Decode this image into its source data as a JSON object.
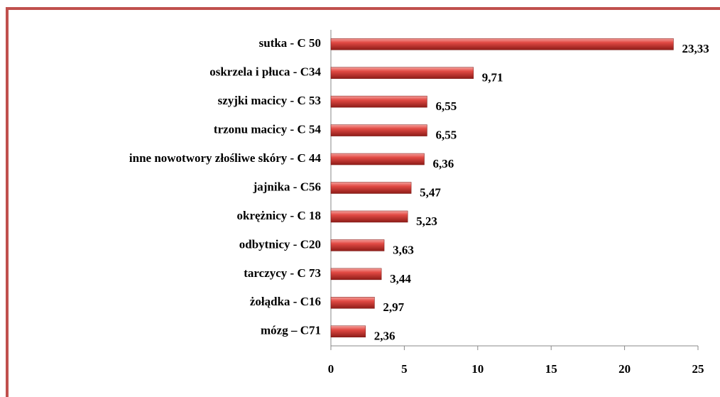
{
  "chart_data": {
    "type": "bar",
    "orientation": "horizontal",
    "categories": [
      "sutka - C 50",
      "oskrzela i płuca - C34",
      "szyjki macicy - C 53",
      "trzonu macicy - C 54",
      "inne nowotwory złośliwe skóry - C 44",
      "jajnika - C56",
      "okrężnicy - C 18",
      "odbytnicy - C20",
      "tarczycy - C 73",
      "żołądka - C16",
      "mózg – C71"
    ],
    "values": [
      23.33,
      9.71,
      6.55,
      6.55,
      6.36,
      5.47,
      5.23,
      3.63,
      3.44,
      2.97,
      2.36
    ],
    "value_labels": [
      "23,33",
      "9,71",
      "6,55",
      "6,55",
      "6,36",
      "5,47",
      "5,23",
      "3,63",
      "3,44",
      "2,97",
      "2,36"
    ],
    "color": "#d9443f",
    "xlim": [
      0,
      25
    ],
    "xticks": [
      0,
      5,
      10,
      15,
      20,
      25
    ],
    "grid": false
  }
}
